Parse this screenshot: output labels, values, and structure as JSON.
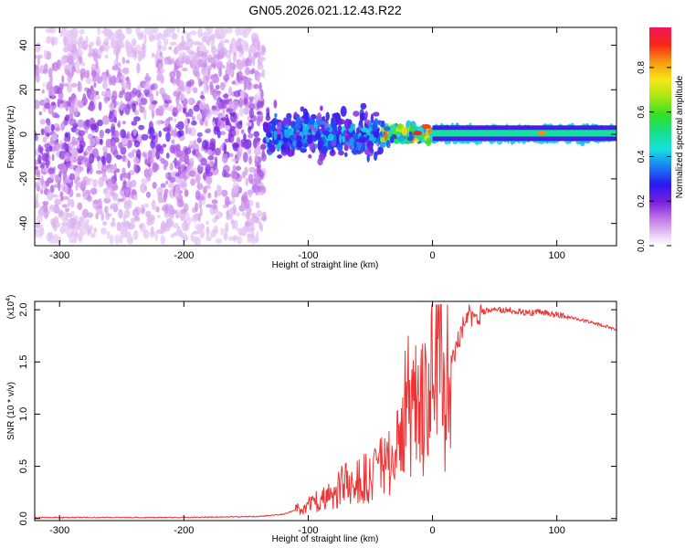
{
  "title": "GN05.2026.021.12.43.R22",
  "chart_data": [
    {
      "type": "heatmap",
      "name": "spectrogram",
      "xlabel": "Height of straight line (km)",
      "ylabel": "Frequency (Hz)",
      "xlim": [
        -320,
        148
      ],
      "ylim": [
        -50,
        48
      ],
      "xticks": [
        -300,
        -200,
        -100,
        0,
        100
      ],
      "yticks": [
        -40,
        -20,
        0,
        20,
        40
      ],
      "colorbar": {
        "label": "Normalized spectral amplitude",
        "range": [
          0,
          0.98
        ],
        "ticks": [
          0.0,
          0.2,
          0.4,
          0.6,
          0.8
        ],
        "tick_labels": [
          "0.0",
          "0.2",
          "0.4",
          "0.6",
          "0.8"
        ]
      },
      "description_regions": [
        {
          "x_range": [
            -320,
            -135
          ],
          "freq_spread_hz": 48,
          "amplitude": [
            0.05,
            0.25
          ]
        },
        {
          "x_range": [
            -135,
            -40
          ],
          "freq_spread_hz": 10,
          "amplitude": [
            0.15,
            0.5
          ]
        },
        {
          "x_range": [
            -40,
            0
          ],
          "freq_spread_hz": 4,
          "amplitude": [
            0.3,
            0.95
          ]
        },
        {
          "x_range": [
            0,
            148
          ],
          "freq_spread_hz": 3,
          "amplitude": [
            0.4,
            0.5
          ]
        }
      ],
      "peaks": [
        {
          "x": -12,
          "y": 0.5,
          "value": 0.95
        },
        {
          "x": -5,
          "y": 3.5,
          "value": 0.9
        },
        {
          "x": 88,
          "y": 0.5,
          "value": 0.85
        }
      ]
    },
    {
      "type": "line",
      "name": "snr",
      "xlabel": "Height of straight line (km)",
      "ylabel": "SNR (10 * v/v)",
      "multiplier_label": "(x10",
      "multiplier_exp": "4",
      "xlim": [
        -320,
        148
      ],
      "ylim": [
        -0.02,
        2.08
      ],
      "xticks": [
        -300,
        -200,
        -100,
        0,
        100
      ],
      "yticks": [
        0.0,
        0.5,
        1.0,
        1.5,
        2.0
      ],
      "ytick_labels": [
        "0.0",
        "0.5",
        "1.0",
        "1.5",
        "2.0"
      ],
      "series": [
        {
          "name": "SNR",
          "color": "#ee3333",
          "x": [
            -320,
            -200,
            -140,
            -120,
            -110,
            -100,
            -90,
            -80,
            -70,
            -60,
            -50,
            -40,
            -30,
            -25,
            -20,
            -15,
            -10,
            -5,
            0,
            5,
            10,
            15,
            20,
            25,
            30,
            40,
            50,
            60,
            70,
            80,
            85,
            90,
            100,
            110,
            120,
            130,
            140,
            148
          ],
          "values": [
            0.01,
            0.01,
            0.02,
            0.04,
            0.08,
            0.12,
            0.18,
            0.25,
            0.3,
            0.32,
            0.38,
            0.48,
            0.6,
            0.8,
            1.0,
            0.95,
            1.05,
            1.1,
            1.35,
            1.3,
            1.2,
            1.5,
            1.7,
            1.85,
            1.96,
            1.98,
            2.0,
            2.0,
            1.98,
            1.97,
            1.99,
            1.97,
            1.95,
            1.93,
            1.9,
            1.87,
            1.84,
            1.81
          ]
        }
      ]
    }
  ]
}
